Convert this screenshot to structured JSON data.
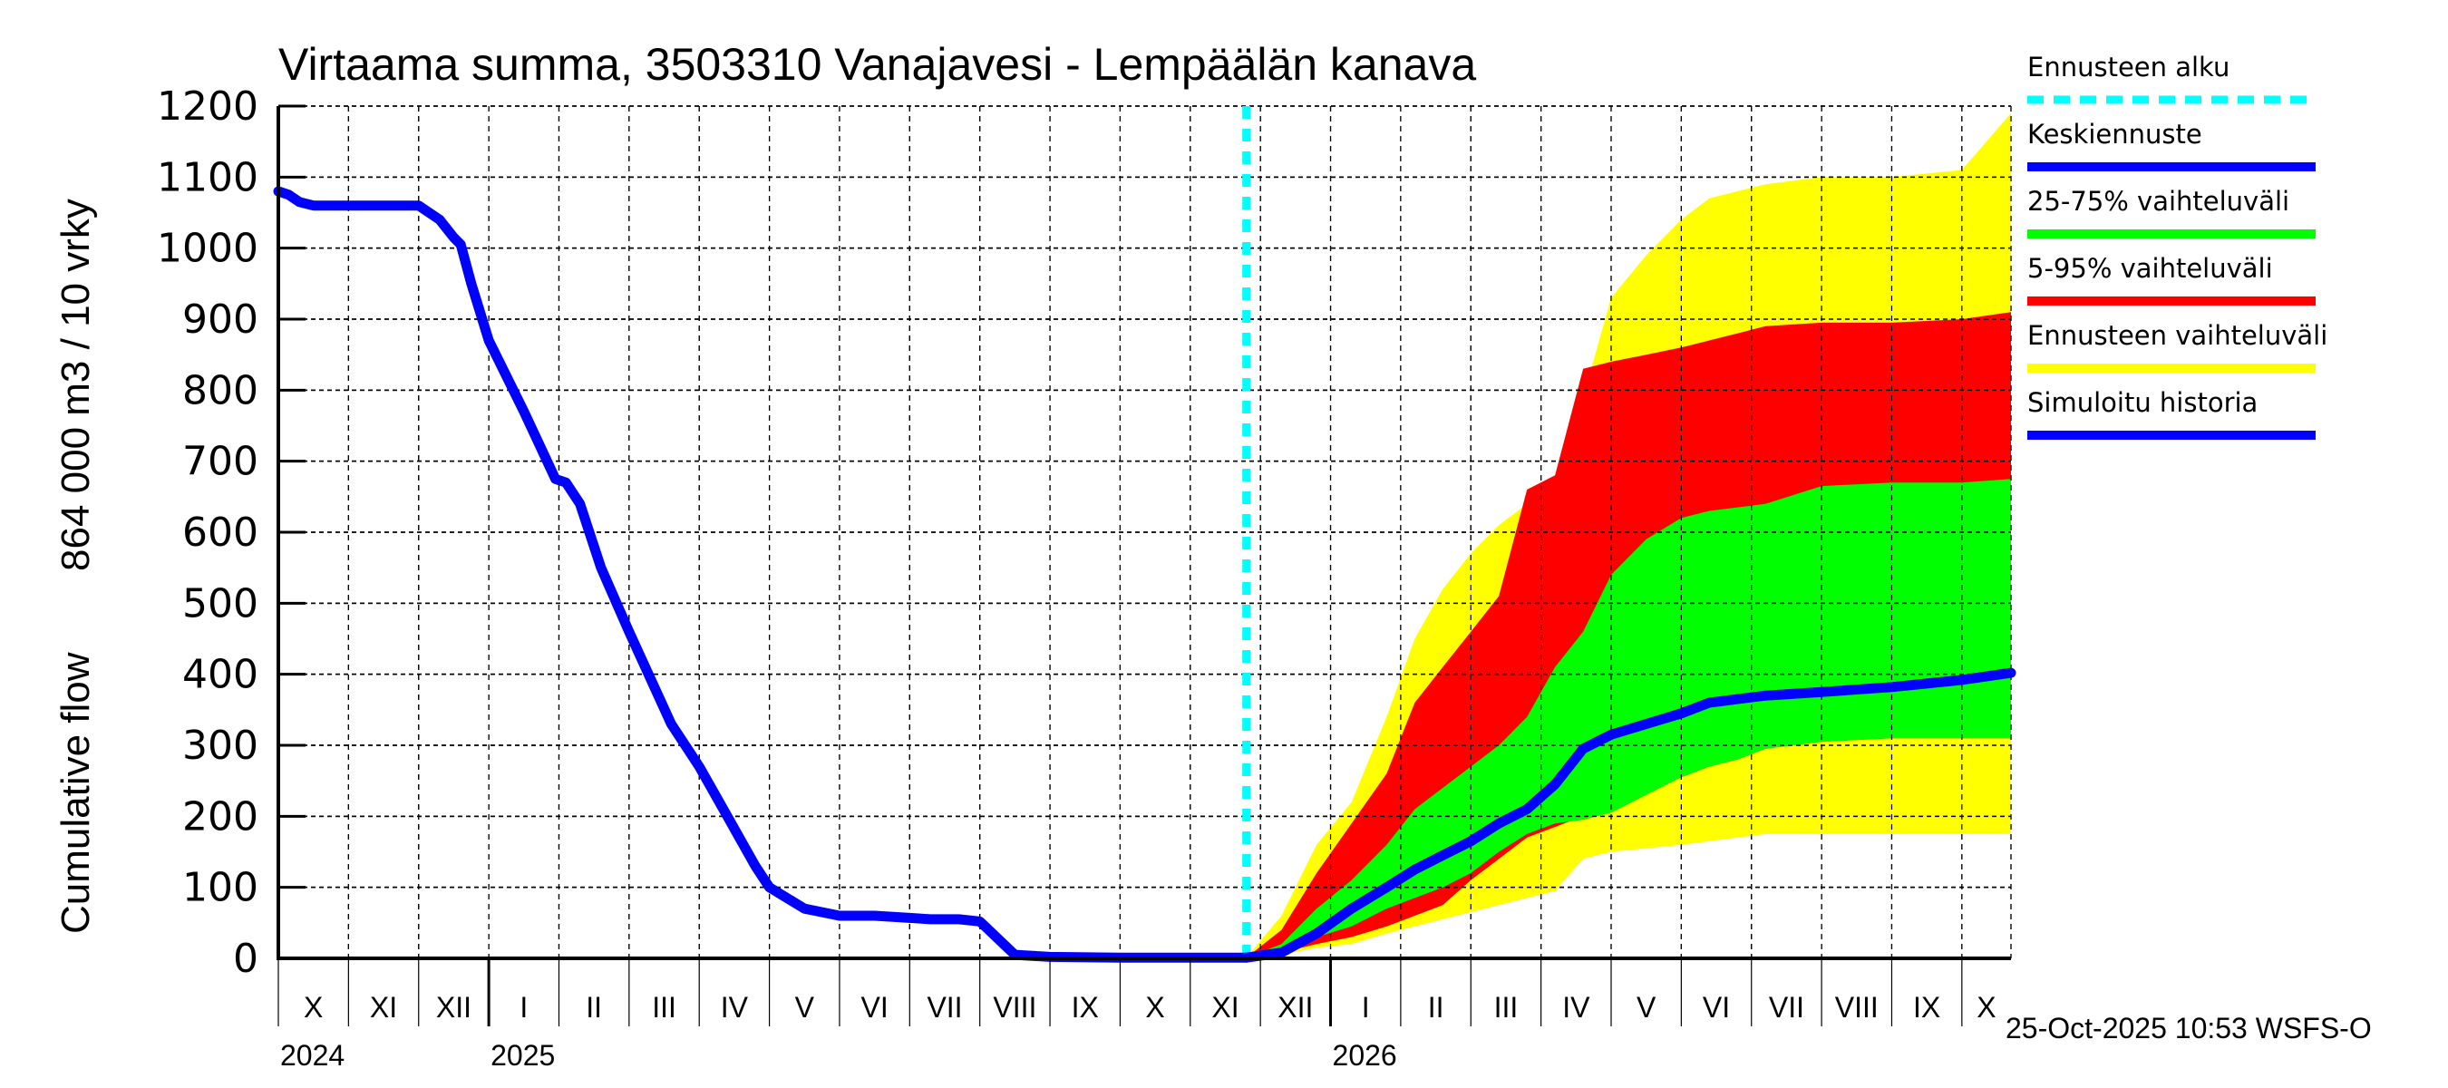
{
  "chart_data": {
    "type": "area",
    "title": "Virtaama summa, 3503310 Vanajavesi - Lempäälän kanava",
    "ylabel_line1": "Cumulative flow",
    "ylabel_line2": "864 000 m3 / 10 vrky",
    "xlabel": "",
    "ylim": [
      0,
      1200
    ],
    "yticks": [
      0,
      100,
      200,
      300,
      400,
      500,
      600,
      700,
      800,
      900,
      1000,
      1100,
      1200
    ],
    "grid": true,
    "x_units": "months since 2024-10-01",
    "xlim": [
      0,
      24.7
    ],
    "forecast_start": 13.8,
    "month_labels": [
      {
        "label": "X",
        "start": 0
      },
      {
        "label": "XI",
        "start": 1
      },
      {
        "label": "XII",
        "start": 2
      },
      {
        "label": "I",
        "start": 3
      },
      {
        "label": "II",
        "start": 4
      },
      {
        "label": "III",
        "start": 5
      },
      {
        "label": "IV",
        "start": 6
      },
      {
        "label": "V",
        "start": 7
      },
      {
        "label": "VI",
        "start": 8
      },
      {
        "label": "VII",
        "start": 9
      },
      {
        "label": "VIII",
        "start": 10
      },
      {
        "label": "IX",
        "start": 11
      },
      {
        "label": "X",
        "start": 12
      },
      {
        "label": "XI",
        "start": 13
      },
      {
        "label": "XII",
        "start": 14
      },
      {
        "label": "I",
        "start": 15
      },
      {
        "label": "II",
        "start": 16
      },
      {
        "label": "III",
        "start": 17
      },
      {
        "label": "IV",
        "start": 18
      },
      {
        "label": "V",
        "start": 19
      },
      {
        "label": "VI",
        "start": 20
      },
      {
        "label": "VII",
        "start": 21
      },
      {
        "label": "VIII",
        "start": 22
      },
      {
        "label": "IX",
        "start": 23
      },
      {
        "label": "X",
        "start": 24
      }
    ],
    "year_labels": [
      {
        "label": "2024",
        "at": 0
      },
      {
        "label": "2025",
        "at": 3
      },
      {
        "label": "2026",
        "at": 15
      }
    ],
    "legend": {
      "placement": "right",
      "items": [
        {
          "label": "Ennusteen alku",
          "color": "#00ffff",
          "style": "dashed"
        },
        {
          "label": "Keskiennuste",
          "color": "#0000ff",
          "style": "solid"
        },
        {
          "label": "25-75% vaihteluväli",
          "color": "#00ff00",
          "style": "solid"
        },
        {
          "label": "5-95% vaihteluväli",
          "color": "#ff0000",
          "style": "solid"
        },
        {
          "label": "Ennusteen vaihteluväli",
          "color": "#ffff00",
          "style": "solid"
        },
        {
          "label": "Simuloitu historia",
          "color": "#0000ff",
          "style": "solid"
        }
      ]
    },
    "series": [
      {
        "name": "Simuloitu historia",
        "color": "#0000ff",
        "x": [
          0,
          0.15,
          0.3,
          0.5,
          1.0,
          1.5,
          2.0,
          2.3,
          2.5,
          2.6,
          2.75,
          3.0,
          3.5,
          3.95,
          4.1,
          4.3,
          4.6,
          5.0,
          5.6,
          6.0,
          6.4,
          6.8,
          7.0,
          7.5,
          8.0,
          8.5,
          9.0,
          9.3,
          9.5,
          9.7,
          10.0,
          10.5,
          11.0,
          12.0,
          13.0,
          13.8
        ],
        "y": [
          1080,
          1075,
          1065,
          1060,
          1060,
          1060,
          1060,
          1040,
          1015,
          1005,
          950,
          870,
          770,
          675,
          670,
          640,
          550,
          460,
          330,
          270,
          200,
          130,
          100,
          70,
          60,
          60,
          57,
          55,
          55,
          55,
          52,
          5,
          2,
          1,
          1,
          1
        ]
      },
      {
        "name": "Keskiennuste",
        "color": "#0000ff",
        "x": [
          13.8,
          14.3,
          14.8,
          15.3,
          15.8,
          16.2,
          16.6,
          17.0,
          17.4,
          17.8,
          18.2,
          18.6,
          19.0,
          19.5,
          20.0,
          20.4,
          20.8,
          21.2,
          22.0,
          23.0,
          24.0,
          24.7
        ],
        "y": [
          1,
          8,
          35,
          70,
          100,
          125,
          145,
          165,
          190,
          210,
          245,
          295,
          315,
          330,
          345,
          360,
          365,
          370,
          375,
          382,
          392,
          402
        ]
      }
    ],
    "bands": [
      {
        "name": "Ennusteen vaihteluväli",
        "color": "#ffff00",
        "x": [
          13.8,
          14.3,
          14.8,
          15.3,
          15.8,
          16.2,
          16.6,
          17.0,
          17.4,
          17.8,
          18.2,
          18.6,
          19.0,
          19.5,
          20.0,
          20.4,
          20.8,
          21.2,
          22.0,
          23.0,
          24.0,
          24.7
        ],
        "upper": [
          1,
          60,
          160,
          220,
          340,
          450,
          520,
          570,
          610,
          640,
          670,
          790,
          930,
          990,
          1040,
          1070,
          1080,
          1090,
          1100,
          1100,
          1110,
          1190
        ],
        "lower": [
          1,
          5,
          15,
          20,
          35,
          45,
          55,
          65,
          75,
          85,
          95,
          140,
          150,
          155,
          160,
          165,
          170,
          175,
          175,
          175,
          175,
          175
        ]
      },
      {
        "name": "5-95% vaihteluväli",
        "color": "#ff0000",
        "x": [
          13.8,
          14.3,
          14.8,
          15.3,
          15.8,
          16.2,
          16.6,
          17.0,
          17.4,
          17.8,
          18.2,
          18.6,
          19.0,
          19.5,
          20.0,
          20.4,
          20.8,
          21.2,
          22.0,
          23.0,
          24.0,
          24.7
        ],
        "upper": [
          1,
          40,
          120,
          190,
          260,
          360,
          410,
          460,
          510,
          660,
          680,
          830,
          840,
          850,
          860,
          870,
          880,
          890,
          895,
          895,
          900,
          910
        ],
        "lower": [
          1,
          8,
          20,
          30,
          45,
          60,
          75,
          110,
          140,
          170,
          185,
          200,
          210,
          235,
          255,
          270,
          280,
          295,
          305,
          310,
          310,
          310
        ]
      },
      {
        "name": "25-75% vaihteluväli",
        "color": "#00ff00",
        "x": [
          13.8,
          14.3,
          14.8,
          15.3,
          15.8,
          16.2,
          16.6,
          17.0,
          17.4,
          17.8,
          18.2,
          18.6,
          19.0,
          19.5,
          20.0,
          20.4,
          20.8,
          21.2,
          22.0,
          23.0,
          24.0,
          24.7
        ],
        "upper": [
          1,
          20,
          70,
          110,
          160,
          210,
          240,
          270,
          300,
          340,
          410,
          460,
          540,
          590,
          620,
          630,
          635,
          640,
          665,
          670,
          670,
          675
        ],
        "lower": [
          1,
          12,
          30,
          45,
          70,
          85,
          100,
          120,
          150,
          175,
          190,
          195,
          205,
          230,
          255,
          270,
          280,
          295,
          305,
          310,
          310,
          310
        ]
      }
    ]
  },
  "footer": {
    "timestamp": "25-Oct-2025 10:53 WSFS-O"
  }
}
